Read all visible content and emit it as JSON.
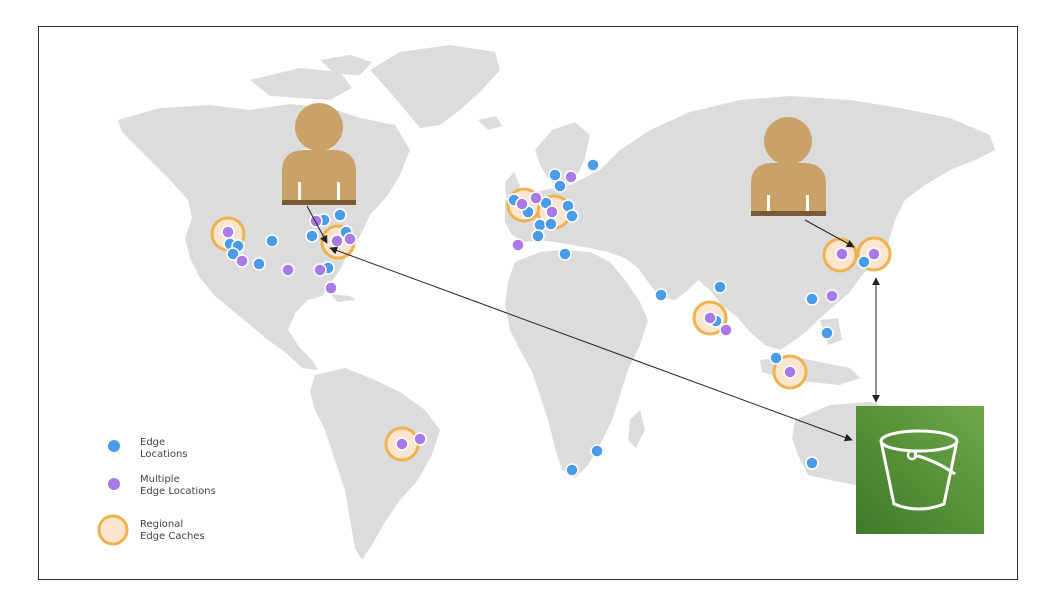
{
  "legend": {
    "edge": [
      "Edge",
      "Locations"
    ],
    "multiple": [
      "Multiple",
      "Edge Locations"
    ],
    "regional": [
      "Regional",
      "Edge Caches"
    ]
  },
  "colors": {
    "land": "#dcdcdc",
    "edge_location": "#4a9be8",
    "multiple_edge_location": "#a97be6",
    "regional_cache_fill": "#fae6cf",
    "regional_cache_ring": "#f0b24f",
    "user": "#c9a26a",
    "user_accent": "#7a5a36",
    "bucket_light": "#6ea84a",
    "bucket_dark": "#3e7a28",
    "arrow": "#222222"
  },
  "icons": {
    "user_icon": "user-silhouette-icon",
    "bucket_icon": "s3-bucket-icon"
  }
}
